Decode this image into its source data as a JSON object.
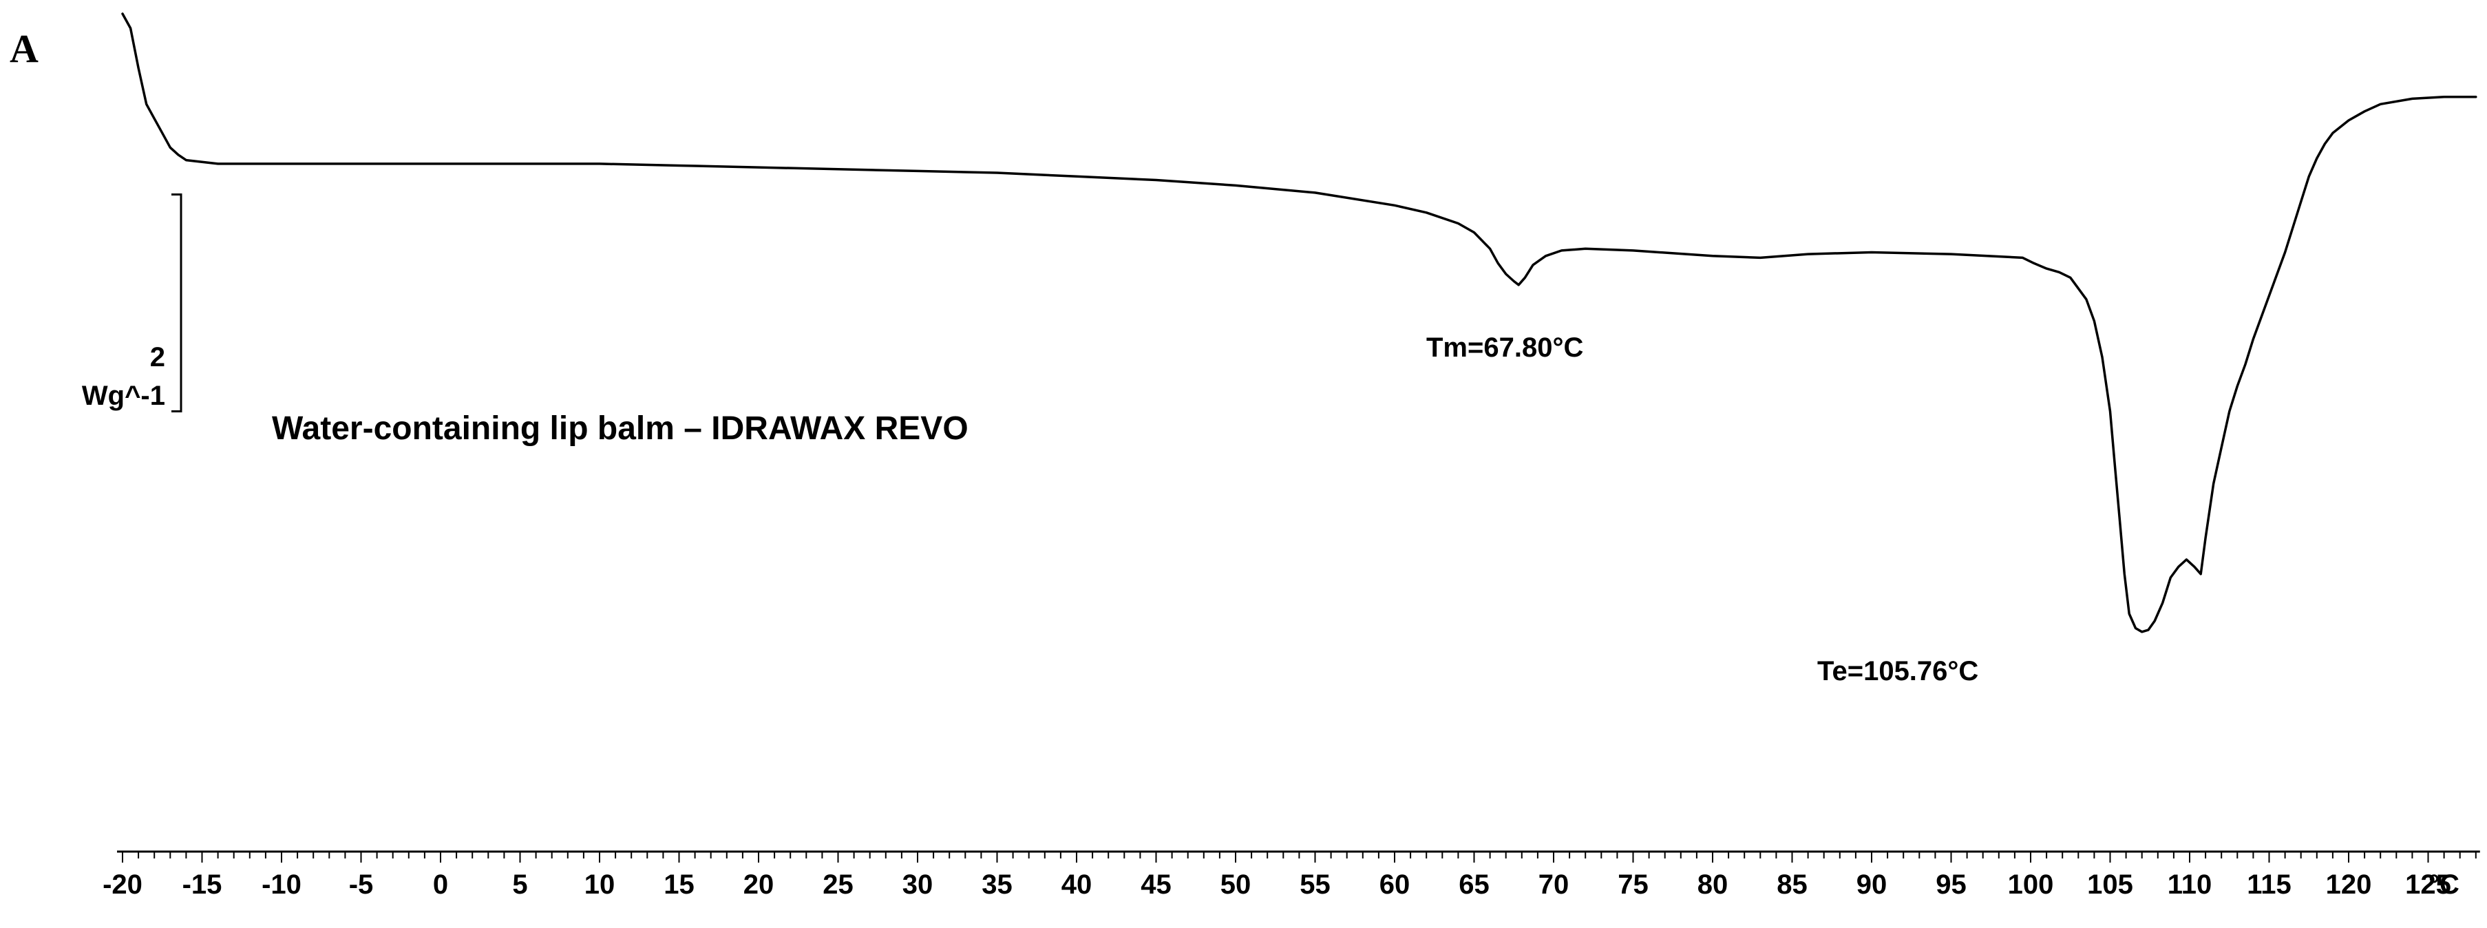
{
  "chart_data": {
    "type": "line",
    "panel_label": "A",
    "title": "Water-containing lip balm – IDRAWAX REVO",
    "xlabel": "°C",
    "ylabel": "Wg^-1",
    "xlim": [
      -20,
      128
    ],
    "ylim": [
      -16.0,
      3.0
    ],
    "x_ticks": [
      "-20",
      "-15",
      "-10",
      "-5",
      "0",
      "5",
      "10",
      "15",
      "20",
      "25",
      "30",
      "35",
      "40",
      "45",
      "50",
      "55",
      "60",
      "65",
      "70",
      "75",
      "80",
      "85",
      "90",
      "95",
      "100",
      "105",
      "110",
      "115",
      "120",
      "125"
    ],
    "minor_tick_step": 1,
    "scale_bar": {
      "value": "2",
      "unit": "Wg^-1",
      "from": -2.0,
      "to": -8.0
    },
    "annotations": [
      {
        "text": "Tm=67.80°C",
        "x": 67.8
      },
      {
        "text": "Te=105.76°C",
        "x": 105.76
      }
    ],
    "series": [
      {
        "x": [
          -20.0,
          -19.5,
          -19.0,
          -18.5,
          -18.0,
          -17.5,
          -17.0,
          -16.5,
          -16.0,
          -15.0,
          -14.0,
          -12.0,
          -10.0,
          -5.0,
          0.0,
          5.0,
          10.0,
          15.0,
          20.0,
          25.0,
          30.0,
          35.0,
          40.0,
          45.0,
          50.0,
          55.0,
          60.0,
          62.0,
          64.0,
          65.0,
          66.0,
          66.5,
          67.0,
          67.5,
          67.8,
          68.2,
          68.7,
          69.5,
          70.5,
          72.0,
          75.0,
          80.0,
          83.0,
          86.0,
          90.0,
          95.0,
          99.5,
          100.2,
          101.0,
          101.8,
          102.5,
          103.5,
          104.0,
          104.5,
          105.0,
          105.3,
          105.6,
          105.9,
          106.2,
          106.6,
          107.0,
          107.4,
          107.8,
          108.3,
          108.8,
          109.3,
          109.8,
          110.3,
          110.7,
          111.0,
          111.5,
          112.0,
          112.5,
          113.0,
          113.5,
          114.0,
          115.0,
          116.0,
          117.0,
          117.5,
          118.0,
          118.5,
          119.0,
          120.0,
          121.0,
          122.0,
          124.0,
          126.0,
          128.0
        ],
        "y": [
          3.0,
          2.6,
          1.5,
          0.5,
          0.1,
          -0.3,
          -0.7,
          -0.9,
          -1.05,
          -1.1,
          -1.15,
          -1.15,
          -1.15,
          -1.15,
          -1.15,
          -1.15,
          -1.15,
          -1.2,
          -1.25,
          -1.3,
          -1.35,
          -1.4,
          -1.5,
          -1.6,
          -1.75,
          -1.95,
          -2.3,
          -2.5,
          -2.8,
          -3.05,
          -3.5,
          -3.9,
          -4.2,
          -4.4,
          -4.5,
          -4.3,
          -3.95,
          -3.7,
          -3.55,
          -3.5,
          -3.55,
          -3.7,
          -3.75,
          -3.65,
          -3.6,
          -3.65,
          -3.75,
          -3.9,
          -4.05,
          -4.15,
          -4.3,
          -4.9,
          -5.5,
          -6.5,
          -8.0,
          -9.5,
          -11.0,
          -12.5,
          -13.6,
          -14.0,
          -14.1,
          -14.05,
          -13.8,
          -13.3,
          -12.6,
          -12.3,
          -12.1,
          -12.3,
          -12.5,
          -11.5,
          -10.0,
          -9.0,
          -8.0,
          -7.3,
          -6.7,
          -6.0,
          -4.8,
          -3.6,
          -2.2,
          -1.5,
          -1.0,
          -0.6,
          -0.3,
          0.05,
          0.3,
          0.5,
          0.65,
          0.7,
          0.7
        ]
      }
    ]
  }
}
